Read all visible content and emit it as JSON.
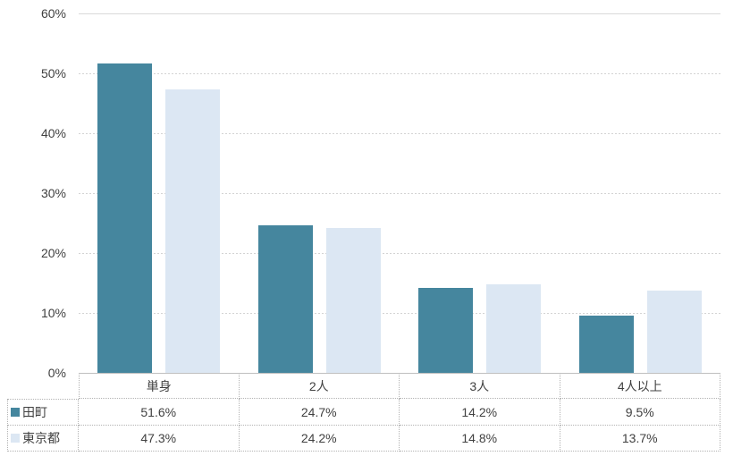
{
  "chart_data": {
    "type": "bar",
    "title": "",
    "categories": [
      "単身",
      "2人",
      "3人",
      "4人以上"
    ],
    "series": [
      {
        "name": "田町",
        "values": [
          51.6,
          24.7,
          14.2,
          9.5
        ],
        "value_labels": [
          "51.6%",
          "24.7%",
          "14.2%",
          "9.5%"
        ],
        "color": "#45869E"
      },
      {
        "name": "東京都",
        "values": [
          47.3,
          24.2,
          14.8,
          13.7
        ],
        "value_labels": [
          "47.3%",
          "24.2%",
          "14.8%",
          "13.7%"
        ],
        "color": "#DCE7F3"
      }
    ],
    "y_axis": {
      "min": 0,
      "max": 60,
      "tick_step": 10,
      "tick_labels": [
        "0%",
        "10%",
        "20%",
        "30%",
        "40%",
        "50%",
        "60%"
      ]
    },
    "grid": {
      "horizontal": true,
      "style": "dashed",
      "top_line_style": "solid"
    },
    "legend_position": "data-table-left",
    "data_table_shown": true
  },
  "colors": {
    "series_1": "#45869E",
    "series_2": "#DCE7F3",
    "gridline": "#D9D9D9",
    "axis_line": "#BFBFBF",
    "table_border": "#B3B3B3",
    "text": "#404040",
    "background": "#FFFFFF"
  }
}
